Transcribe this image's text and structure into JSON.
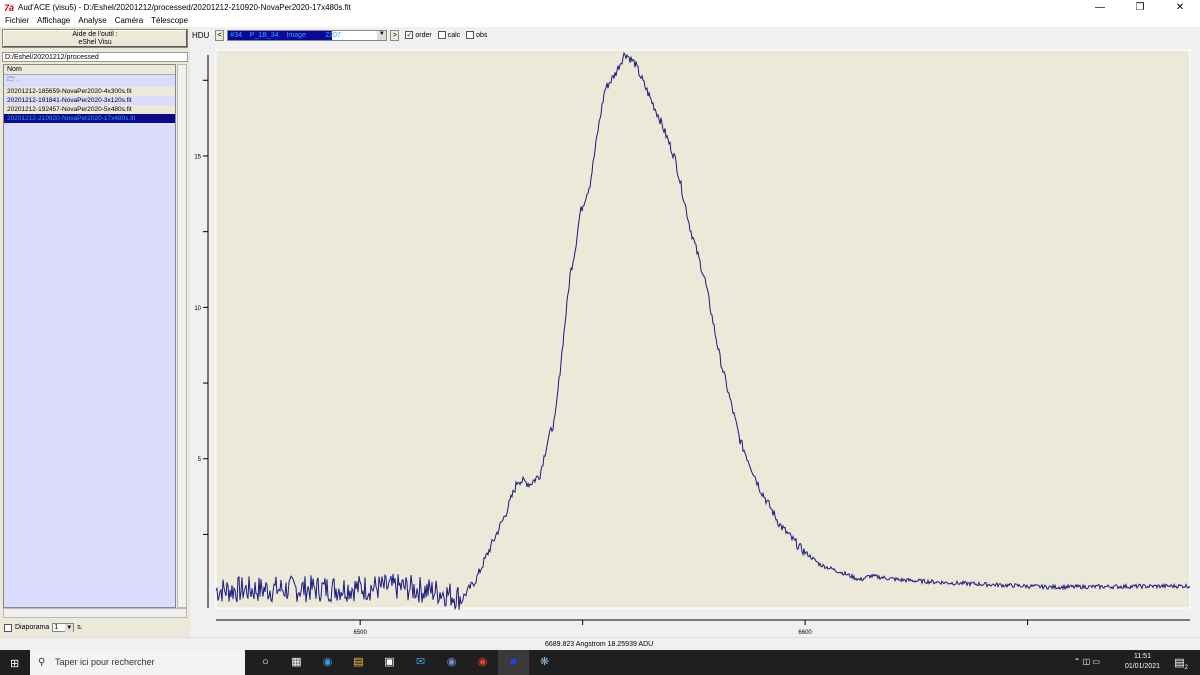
{
  "window": {
    "title": "Aud'ACE (visu5) - D:/Eshel/20201212/processed/20201212-210920-NovaPer2020-17x480s.fit",
    "logo": "7ä"
  },
  "menu": [
    "Fichier",
    "Affichage",
    "Analyse",
    "Caméra",
    "Télescope"
  ],
  "left_panel": {
    "aide_line1": "Aide de l'outil :",
    "aide_line2": "eShel Visu",
    "path": "D:/Eshel/20201212/processed",
    "column_header": "Nom",
    "parent_label": "..",
    "files": [
      {
        "name": "20201212-185659-NovaPer2020-4x300s.fit",
        "selected": false
      },
      {
        "name": "20201212-191841-NovaPer2020-3x120s.fit",
        "selected": false
      },
      {
        "name": "20201212-192457-NovaPer2020-5x480s.fit",
        "selected": false
      },
      {
        "name": "20201212-210920-NovaPer2020-17x480s.fit",
        "selected": true
      }
    ],
    "diaporama_label": "Diaporama",
    "diaporama_value": "1",
    "diaporama_unit": "s.",
    "diaporama_checked": false
  },
  "toolbar": {
    "hdu_label": "HDU",
    "prev": "<",
    "next": ">",
    "hdu_value": "#34    P_1B_34    Image          2207",
    "checks": [
      {
        "label": "order",
        "checked": true
      },
      {
        "label": "calc",
        "checked": false
      },
      {
        "label": "obs",
        "checked": false
      }
    ]
  },
  "status": "6689.823 Angstrom 18.25939 ADU",
  "taskbar": {
    "search_placeholder": "Taper ici pour rechercher",
    "time": "11:51",
    "date": "01/01/2021",
    "notifications": "2"
  },
  "chart_data": {
    "type": "line",
    "xlim": [
      6467.6,
      6686.5
    ],
    "ylim": [
      0.07,
      18.5
    ],
    "x_ticks": [
      6500,
      6600
    ],
    "x_minor_ticks": [
      6550,
      6650
    ],
    "y_ticks": [
      5,
      10,
      15
    ],
    "y_minor_ticks": [
      2.5,
      7.5,
      12.5,
      17.5
    ],
    "line_color": "#1a1a80",
    "background": "#ece9d8",
    "x": [
      6467.6,
      6497.8,
      6509,
      6518,
      6523,
      6526,
      6529.2,
      6532.6,
      6535.5,
      6538.2,
      6540.4,
      6542.2,
      6543.8,
      6545.4,
      6547.2,
      6548.3,
      6549.4,
      6551.7,
      6553.5,
      6555,
      6557.3,
      6559.5,
      6561.8,
      6564,
      6567.4,
      6570.8,
      6574.2,
      6577.5,
      6580.9,
      6585.4,
      6589.9,
      6594.4,
      6598.9,
      6603.4,
      6607.9,
      6612.4,
      6614.6,
      6621.3,
      6632.6,
      6655,
      6686.5
    ],
    "y": [
      0.66,
      0.73,
      0.76,
      0.6,
      0.4,
      1.0,
      2.05,
      3.15,
      4.3,
      4.17,
      4.47,
      5.63,
      6.3,
      8.6,
      11.1,
      11.9,
      13.1,
      14.1,
      15.9,
      17.2,
      17.7,
      18.4,
      18.05,
      17.3,
      16.2,
      14.9,
      12.6,
      10.9,
      8.3,
      5.6,
      4.0,
      2.8,
      2.05,
      1.5,
      1.26,
      1.0,
      1.13,
      1.0,
      0.9,
      0.76,
      0.8
    ]
  }
}
